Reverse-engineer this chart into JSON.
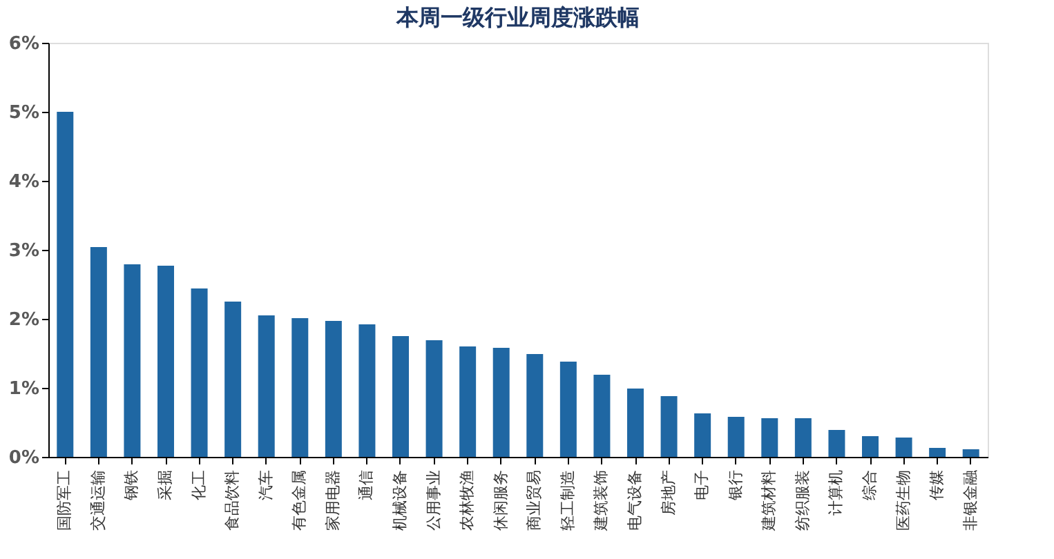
{
  "chart_data": {
    "type": "bar",
    "title": "本周一级行业周度涨跌幅",
    "categories": [
      "国防军工",
      "交通运输",
      "钢铁",
      "采掘",
      "化工",
      "食品饮料",
      "汽车",
      "有色金属",
      "家用电器",
      "通信",
      "机械设备",
      "公用事业",
      "农林牧渔",
      "休闲服务",
      "商业贸易",
      "轻工制造",
      "建筑装饰",
      "电气设备",
      "房地产",
      "电子",
      "银行",
      "建筑材料",
      "纺织服装",
      "计算机",
      "综合",
      "医药生物",
      "传媒",
      "非银金融"
    ],
    "values": [
      5.0,
      3.04,
      2.79,
      2.77,
      2.44,
      2.25,
      2.05,
      2.01,
      1.97,
      1.92,
      1.75,
      1.69,
      1.6,
      1.58,
      1.49,
      1.38,
      1.19,
      0.99,
      0.88,
      0.63,
      0.58,
      0.56,
      0.56,
      0.39,
      0.3,
      0.28,
      0.13,
      0.11
    ],
    "color": "#1f67a3",
    "ylim": [
      0,
      6
    ],
    "yticks": [
      {
        "value": 0,
        "label": "0%"
      },
      {
        "value": 1,
        "label": "1%"
      },
      {
        "value": 2,
        "label": "2%"
      },
      {
        "value": 3,
        "label": "3%"
      },
      {
        "value": 4,
        "label": "4%"
      },
      {
        "value": 5,
        "label": "5%"
      },
      {
        "value": 6,
        "label": "6%"
      }
    ],
    "grid": false
  }
}
